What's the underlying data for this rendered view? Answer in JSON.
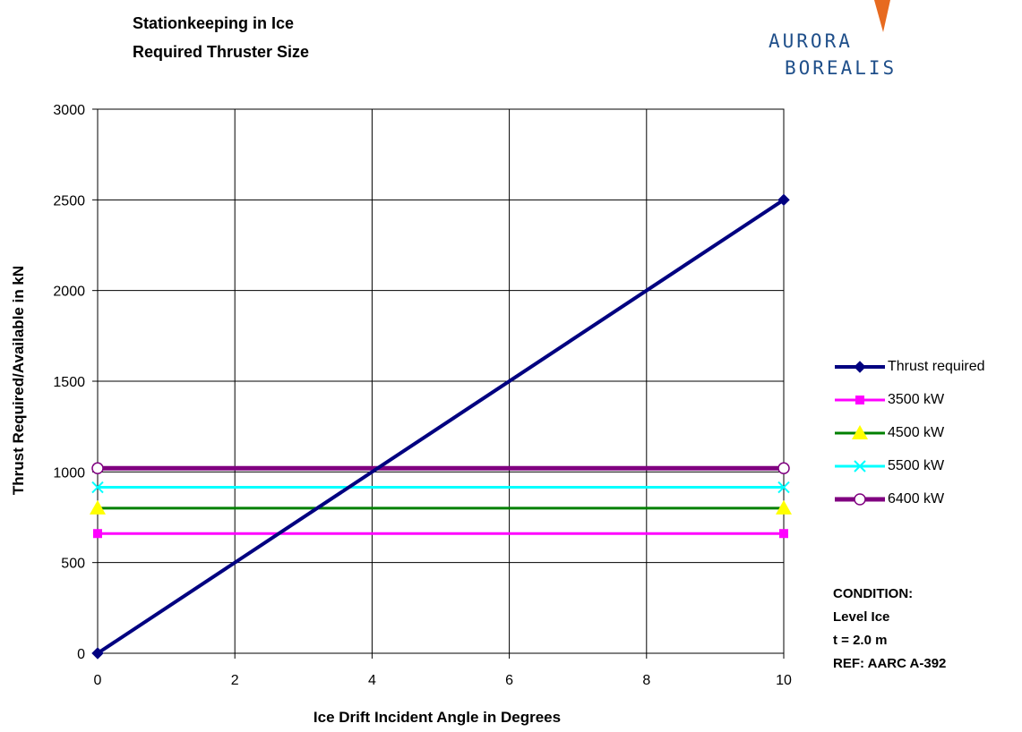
{
  "header": {
    "title_line1": "Stationkeeping in Ice",
    "title_line2": "Required Thruster Size"
  },
  "logo": {
    "line1": "AURORA",
    "line2": "BOREALIS",
    "text_color": "#1f4f8a",
    "flame_color": "#e76a1f"
  },
  "chart_data": {
    "type": "line",
    "title": "Stationkeeping in Ice Required Thruster Size",
    "xlabel": "Ice Drift Incident Angle in Degrees",
    "ylabel": "Thrust Required/Available in  kN",
    "xlim": [
      0,
      10
    ],
    "ylim": [
      0,
      3000
    ],
    "xticks": [
      0,
      2,
      4,
      6,
      8,
      10
    ],
    "yticks": [
      0,
      500,
      1000,
      1500,
      2000,
      2500,
      3000
    ],
    "grid": true,
    "legend_position": "right",
    "series": [
      {
        "name": "Thrust required",
        "x": [
          0,
          10
        ],
        "y": [
          0,
          2500
        ],
        "color": "#000080",
        "marker": "diamond"
      },
      {
        "name": "3500 kW",
        "x": [
          0,
          10
        ],
        "y": [
          660,
          660
        ],
        "color": "#ff00ff",
        "marker": "square"
      },
      {
        "name": "4500 kW",
        "x": [
          0,
          10
        ],
        "y": [
          800,
          800
        ],
        "color": "#008000",
        "marker": "triangle",
        "marker_color": "#ffff00"
      },
      {
        "name": "5500 kW",
        "x": [
          0,
          10
        ],
        "y": [
          915,
          915
        ],
        "color": "#00ffff",
        "marker": "x"
      },
      {
        "name": "6400 kW",
        "x": [
          0,
          10
        ],
        "y": [
          1020,
          1020
        ],
        "color": "#800080",
        "marker": "circle"
      }
    ]
  },
  "condition": {
    "line1": "CONDITION:",
    "line2": "Level Ice",
    "line3": "t = 2.0 m",
    "line4": "REF: AARC A-392"
  }
}
